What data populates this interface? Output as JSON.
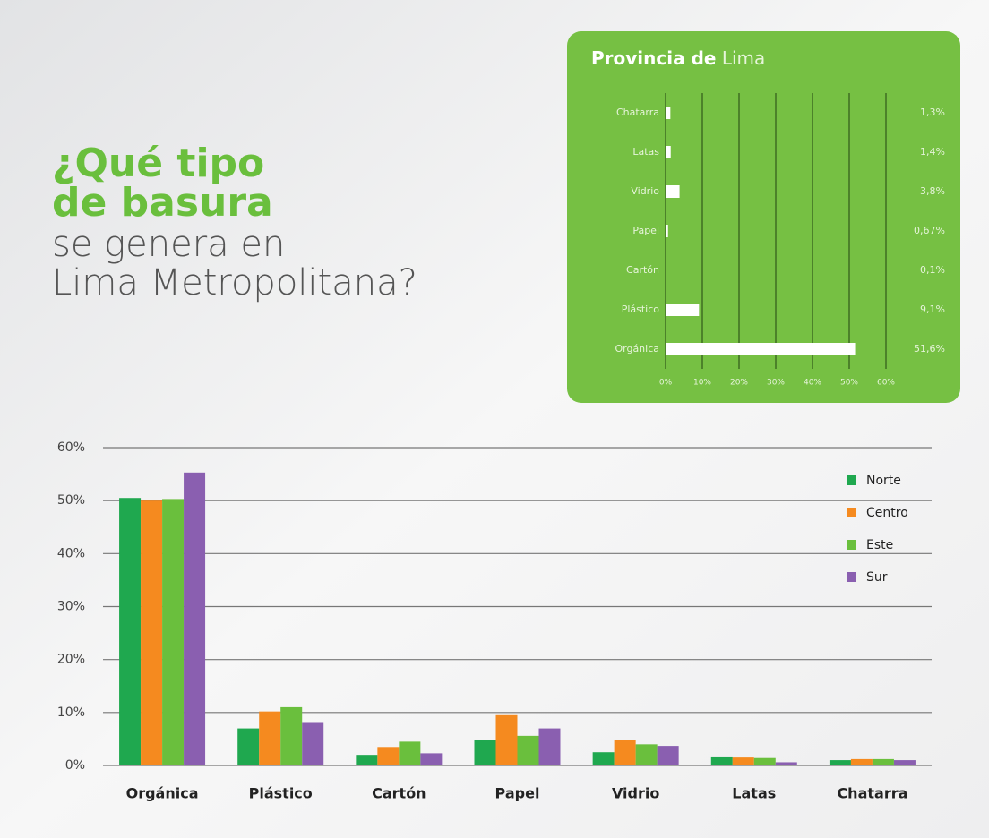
{
  "heading": {
    "bold_lines": [
      "¿Qué tipo",
      "de basura"
    ],
    "light_lines": [
      "se genera en",
      "Lima Metropolitana?"
    ]
  },
  "chart_data": [
    {
      "type": "bar",
      "horizontal": true,
      "title": "Provincia de",
      "title_light": "Lima",
      "categories": [
        "Chatarra",
        "Latas",
        "Vidrio",
        "Papel",
        "Cartón",
        "Plástico",
        "Orgánica"
      ],
      "values": [
        1.3,
        1.4,
        3.8,
        0.67,
        0.1,
        9.1,
        51.6
      ],
      "value_labels": [
        "1,3%",
        "1,4%",
        "3,8%",
        "0,67%",
        "0,1%",
        "9,1%",
        "51,6%"
      ],
      "color": "#ffffff",
      "xlim": [
        0,
        60
      ],
      "xticks": [
        {
          "value": 0,
          "label": "0%"
        },
        {
          "value": 10,
          "label": "10%"
        },
        {
          "value": 20,
          "label": "20%"
        },
        {
          "value": 30,
          "label": "30%"
        },
        {
          "value": 40,
          "label": "40%"
        },
        {
          "value": 50,
          "label": "50%"
        },
        {
          "value": 60,
          "label": "60%"
        }
      ],
      "grid": true
    },
    {
      "type": "bar",
      "horizontal": false,
      "categories": [
        "Orgánica",
        "Plástico",
        "Cartón",
        "Papel",
        "Vidrio",
        "Latas",
        "Chatarra"
      ],
      "series": [
        {
          "name": "Norte",
          "color": "#1fa84f",
          "values": [
            50.5,
            7,
            2,
            4.8,
            2.5,
            1.7,
            1
          ]
        },
        {
          "name": "Centro",
          "color": "#f58a1f",
          "values": [
            50,
            10.2,
            3.5,
            9.5,
            4.8,
            1.5,
            1.2
          ]
        },
        {
          "name": "Este",
          "color": "#6abf3d",
          "values": [
            50.3,
            11,
            4.5,
            5.6,
            4,
            1.4,
            1.2
          ]
        },
        {
          "name": "Sur",
          "color": "#8a5fb0",
          "values": [
            55.3,
            8.2,
            2.3,
            7,
            3.7,
            0.6,
            1
          ]
        }
      ],
      "ylim": [
        0,
        60
      ],
      "yticks": [
        {
          "value": 0,
          "label": "0%"
        },
        {
          "value": 10,
          "label": "10%"
        },
        {
          "value": 20,
          "label": "20%"
        },
        {
          "value": 30,
          "label": "30%"
        },
        {
          "value": 40,
          "label": "40%"
        },
        {
          "value": 50,
          "label": "50%"
        },
        {
          "value": 60,
          "label": "60%"
        }
      ],
      "grid": true,
      "legend": "top-right"
    }
  ]
}
